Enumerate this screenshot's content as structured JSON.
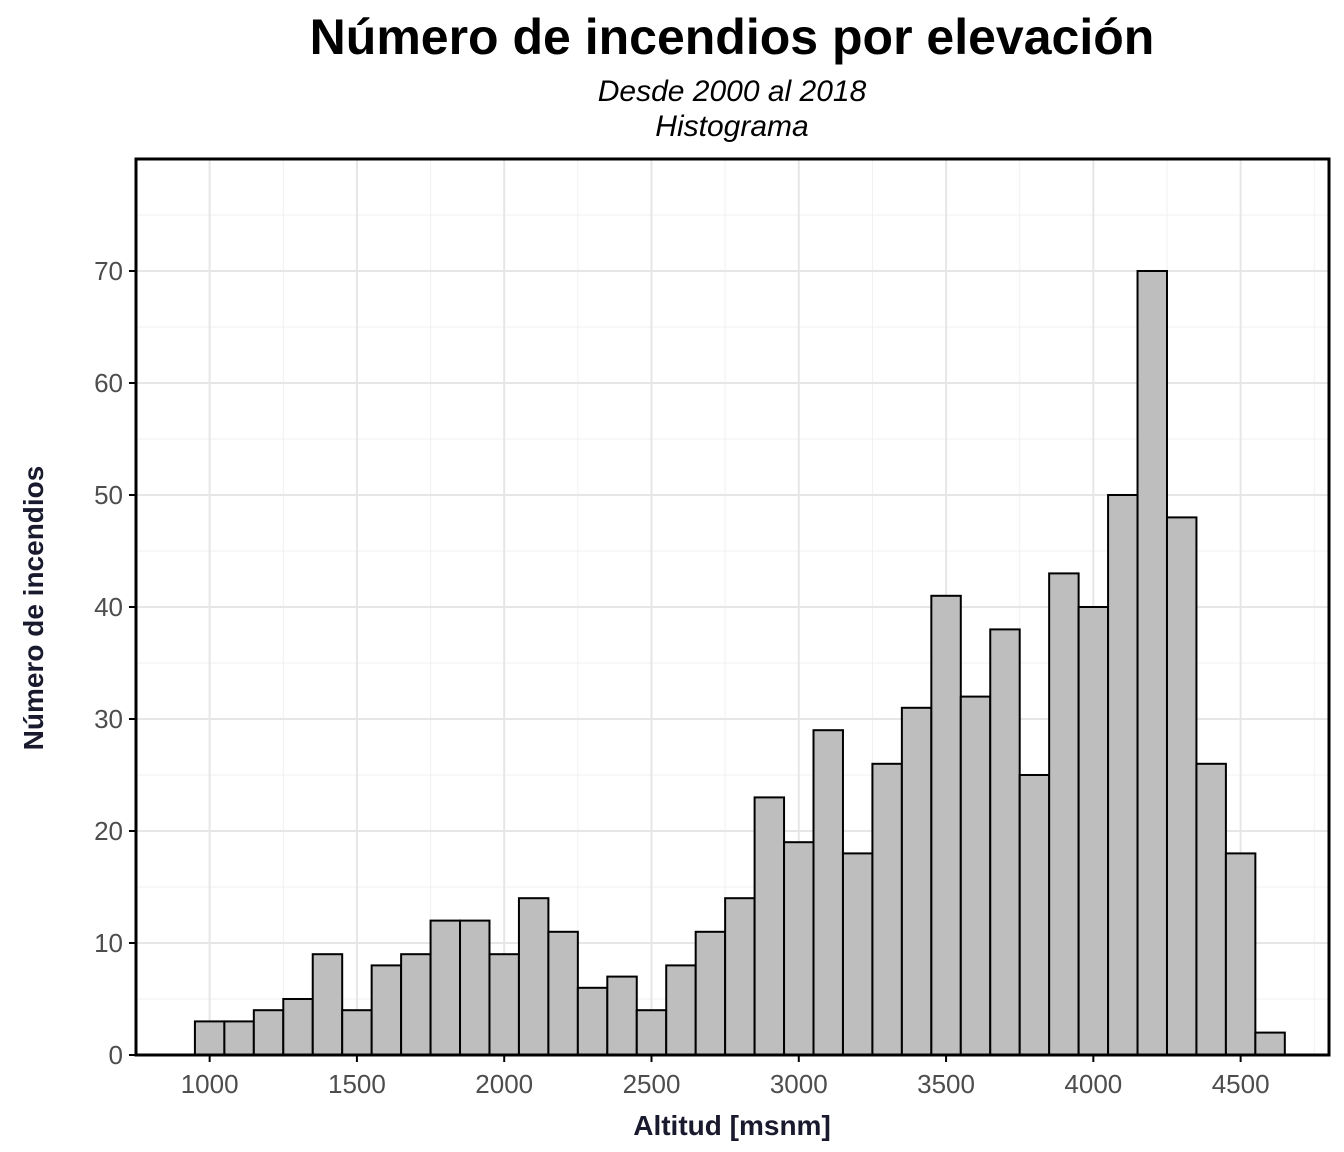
{
  "chart_data": {
    "type": "bar",
    "title": "Número de incendios por elevación",
    "subtitle": "Desde 2000 al 2018",
    "caption": "Histograma",
    "xlabel": "Altitud [msnm]",
    "ylabel": "Número de incendios",
    "bin_width": 100,
    "bin_centers": [
      1000,
      1100,
      1200,
      1300,
      1400,
      1500,
      1600,
      1700,
      1800,
      1900,
      2000,
      2100,
      2200,
      2300,
      2400,
      2500,
      2600,
      2700,
      2800,
      2900,
      3000,
      3100,
      3200,
      3300,
      3400,
      3500,
      3600,
      3700,
      3800,
      3900,
      4000,
      4100,
      4200,
      4300,
      4400,
      4500,
      4600
    ],
    "values": [
      3,
      3,
      4,
      5,
      9,
      4,
      8,
      9,
      12,
      12,
      9,
      14,
      11,
      6,
      7,
      4,
      8,
      11,
      14,
      23,
      19,
      29,
      18,
      26,
      31,
      41,
      32,
      38,
      25,
      43,
      40,
      50,
      70,
      48,
      26,
      18,
      2
    ],
    "xticks": [
      1000,
      1500,
      2000,
      2500,
      3000,
      3500,
      4000,
      4500
    ],
    "yticks": [
      0,
      10,
      20,
      30,
      40,
      50,
      60,
      70
    ],
    "xlim": [
      750,
      4800
    ],
    "ylim": [
      0,
      80
    ],
    "bar_fill": "#bebebe",
    "bar_stroke": "#000000",
    "grid": true,
    "legend": "none"
  }
}
